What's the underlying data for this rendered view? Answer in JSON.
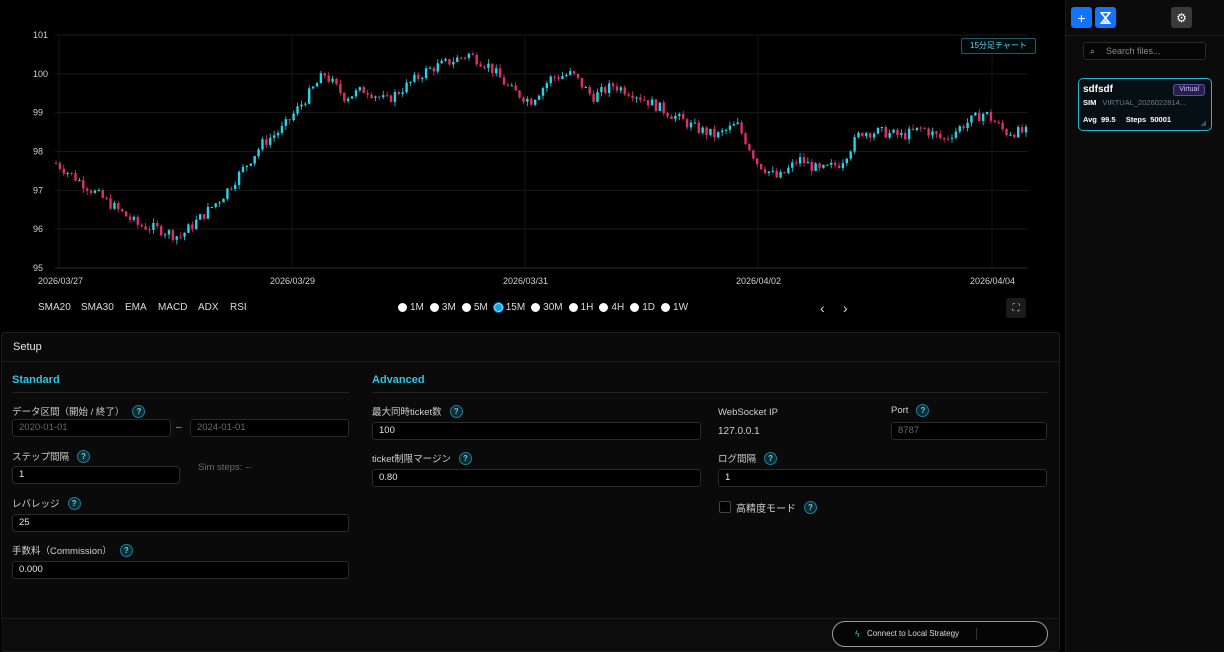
{
  "chart": {
    "badge": "15分足チャート",
    "y_ticks": [
      "101",
      "100",
      "99",
      "98",
      "97",
      "96",
      "95"
    ],
    "x_ticks": [
      "2026/03/27",
      "2026/03/29",
      "2026/03/31",
      "2026/04/02",
      "2026/04/04"
    ]
  },
  "chart_data": {
    "type": "candlestick",
    "y_range": [
      95,
      101
    ],
    "x_range": [
      "2026/03/27",
      "2026/04/04"
    ],
    "grid": true,
    "close_path": [
      97.7,
      97.3,
      96.9,
      96.5,
      96.1,
      96.0,
      95.8,
      96.3,
      96.8,
      97.5,
      98.2,
      98.6,
      99.3,
      100.0,
      99.4,
      99.6,
      99.3,
      99.7,
      100.1,
      100.3,
      100.5,
      100.2,
      99.6,
      99.3,
      99.9,
      100.0,
      99.4,
      99.7,
      99.5,
      99.2,
      98.9,
      98.6,
      98.4,
      98.7,
      97.7,
      97.3,
      97.8,
      97.5,
      97.7,
      98.5,
      98.5,
      98.4,
      98.6,
      98.3,
      98.7,
      99.0,
      98.5,
      98.5
    ],
    "colors": {
      "up": "#26d4e6",
      "down": "#e0306a"
    }
  },
  "indicators": [
    "SMA20",
    "SMA30",
    "EMA",
    "MACD",
    "ADX",
    "RSI"
  ],
  "timeframes": [
    "1M",
    "3M",
    "5M",
    "15M",
    "30M",
    "1H",
    "4H",
    "1D",
    "1W"
  ],
  "timeframe_selected": "15M",
  "nav": {
    "prev": "‹",
    "next": "›",
    "fullscreen": "⛶"
  },
  "setup": {
    "title": "Setup",
    "standard": {
      "title": "Standard",
      "data_range_label": "データ区間（開始 / 終了）",
      "start": "2020-01-01",
      "dash": "–",
      "end": "2024-01-01",
      "step_label": "ステップ間隔",
      "step": "1",
      "sim_steps": "Sim steps: --",
      "leverage_label": "レバレッジ",
      "leverage": "25",
      "commission_label": "手数料（Commission）",
      "commission": "0.000"
    },
    "advanced": {
      "title": "Advanced",
      "max_ticket_label": "最大同時ticket数",
      "max_ticket": "100",
      "margin_label": "ticket制限マージン",
      "margin": "0.80",
      "ws_label": "WebSocket IP",
      "ws_ip": "127.0.0.1",
      "port_label": "Port",
      "port": "8787",
      "log_label": "ログ間隔",
      "log": "1",
      "hp_label": "高精度モード"
    },
    "help_glyph": "?"
  },
  "connect_label": "Connect to Local Strategy",
  "sidebar": {
    "add": "+",
    "settings": "⚙",
    "search_placeholder": "Search files...",
    "card": {
      "name": "sdfsdf",
      "badge": "Virtual",
      "type": "SIM",
      "id": "VIRTUAL_2026022814...",
      "avg_label": "Avg",
      "avg": "99.5",
      "steps_label": "Steps",
      "steps": "50001"
    }
  }
}
